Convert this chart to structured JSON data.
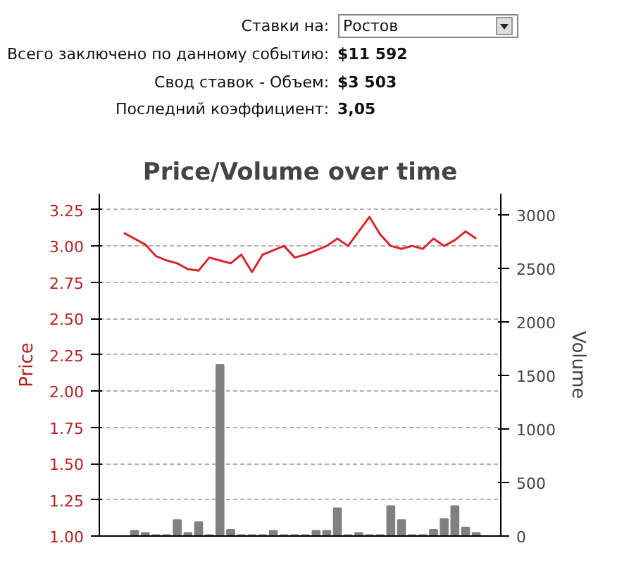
{
  "chart_data": {
    "type": "bar",
    "title": "Price/Volume over time",
    "annotations": [
      "Ставки на:",
      "Ростов",
      "Всего заключено по данному событию:",
      "$11 592",
      "Свод ставок - Объем:",
      "$3 503",
      "Последний коэффициент:",
      "3,05"
    ],
    "ylabel": "Price",
    "y2label": "Volume",
    "categories": [
      null,
      null,
      null,
      null,
      null,
      null,
      null,
      null,
      null,
      null,
      null,
      null,
      null,
      null,
      null,
      null,
      null,
      null,
      null,
      null,
      null,
      null,
      null,
      null,
      null,
      null,
      null,
      null,
      null,
      null,
      null,
      null,
      null,
      null
    ],
    "series": [
      {
        "axis": "y2",
        "color": "#808080",
        "values": [
          0,
          50,
          30,
          10,
          10,
          150,
          30,
          130,
          10,
          1600,
          60,
          10,
          10,
          10,
          50,
          10,
          10,
          10,
          50,
          50,
          260,
          10,
          30,
          10,
          10,
          280,
          150,
          10,
          10,
          60,
          160,
          280,
          80,
          30
        ]
      },
      {
        "type": "line",
        "axis": "y",
        "color": "#d9262e",
        "values": [
          3.09,
          3.05,
          3.01,
          2.93,
          2.9,
          2.88,
          2.84,
          2.83,
          2.92,
          2.9,
          2.88,
          2.94,
          2.82,
          2.94,
          2.97,
          3.0,
          2.92,
          2.94,
          2.97,
          3.0,
          3.05,
          3.0,
          3.1,
          3.2,
          3.08,
          3.0,
          2.98,
          3.0,
          2.98,
          3.05,
          3.0,
          3.04,
          3.1,
          3.05
        ]
      }
    ],
    "ylim": [
      1.0,
      3.36
    ],
    "yticks": [
      {
        "value": 1.0,
        "label": "1.00"
      },
      {
        "value": 1.25,
        "label": "1.25"
      },
      {
        "value": 1.5,
        "label": "1.50"
      },
      {
        "value": 1.75,
        "label": "1.75"
      },
      {
        "value": 2.0,
        "label": "2.00"
      },
      {
        "value": 2.25,
        "label": "2.25"
      },
      {
        "value": 2.5,
        "label": "2.50"
      },
      {
        "value": 2.75,
        "label": "2.75"
      },
      {
        "value": 3.0,
        "label": "3.00"
      },
      {
        "value": 3.25,
        "label": "3.25"
      }
    ],
    "y2lim": [
      0,
      3200
    ],
    "y2ticks": [
      0,
      500,
      1000,
      1500,
      2000,
      2500,
      3000
    ],
    "grid": "y"
  }
}
